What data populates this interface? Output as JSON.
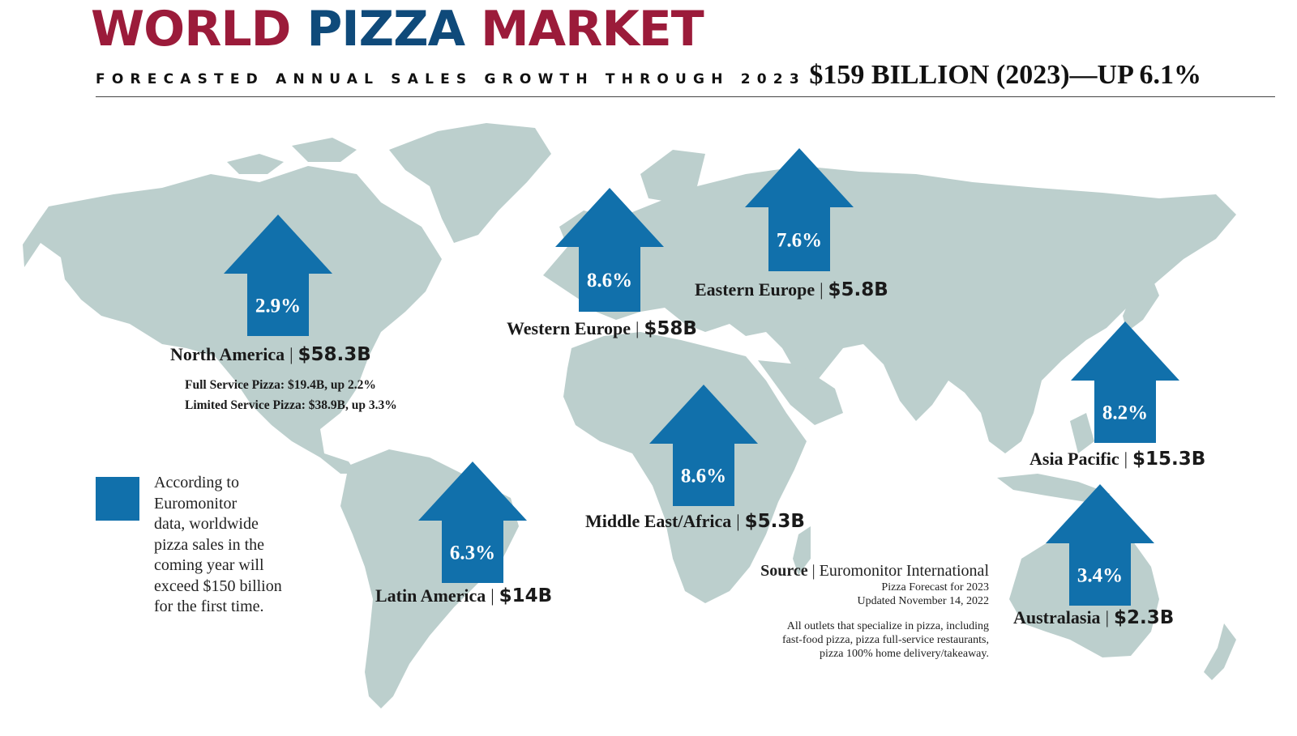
{
  "header": {
    "title_part1": "WORLD",
    "title_part2": "PIZZA",
    "title_part3": "MARKET",
    "subtitle": "FORECASTED ANNUAL SALES GROWTH THROUGH 2023",
    "headline": "$159 BILLION (2023)—UP 6.1%"
  },
  "regions": [
    {
      "id": "north-america",
      "name": "North America",
      "value": "$58.3B",
      "growth": "2.9%"
    },
    {
      "id": "western-europe",
      "name": "Western Europe",
      "value": "$58B",
      "growth": "8.6%"
    },
    {
      "id": "eastern-europe",
      "name": "Eastern Europe",
      "value": "$5.8B",
      "growth": "7.6%"
    },
    {
      "id": "asia-pacific",
      "name": "Asia Pacific",
      "value": "$15.3B",
      "growth": "8.2%"
    },
    {
      "id": "middle-east-africa",
      "name": "Middle East/Africa",
      "value": "$5.3B",
      "growth": "8.6%"
    },
    {
      "id": "latin-america",
      "name": "Latin America",
      "value": "$14B",
      "growth": "6.3%"
    },
    {
      "id": "australasia",
      "name": "Australasia",
      "value": "$2.3B",
      "growth": "3.4%"
    }
  ],
  "north_america_detail": {
    "full_service": "Full Service Pizza: $19.4B, up 2.2%",
    "limited_service": "Limited Service Pizza: $38.9B, up 3.3%"
  },
  "legend": {
    "lines": [
      "According to",
      "Euromonitor",
      "data, worldwide",
      "pizza sales in the",
      "coming year will",
      "exceed $150 billion",
      "for the first time."
    ]
  },
  "source": {
    "label": "Source",
    "name": "Euromonitor International",
    "line2": "Pizza Forecast for 2023",
    "line3": "Updated November 14, 2022",
    "note1": "All outlets that specialize in pizza, including",
    "note2": "fast-food pizza, pizza full-service restaurants,",
    "note3": "pizza 100% home delivery/takeaway."
  },
  "colors": {
    "title_red": "#9b1b3a",
    "title_blue": "#0f4a7a",
    "arrow_blue": "#1170ab",
    "land": "#bccfcd"
  }
}
